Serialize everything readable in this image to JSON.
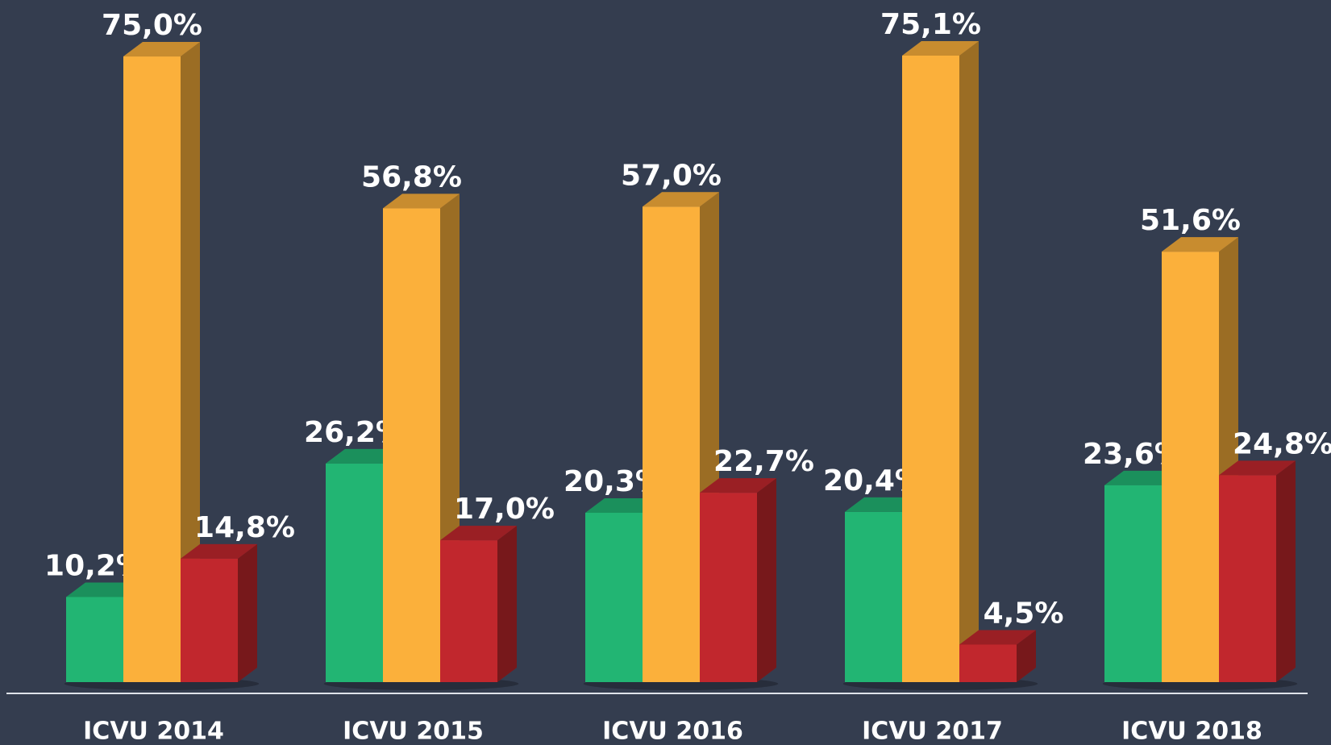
{
  "chart_data": {
    "type": "bar3d",
    "categories": [
      "ICVU 2014",
      "ICVU 2015",
      "ICVU 2016",
      "ICVU 2017",
      "ICVU 2018"
    ],
    "series": [
      {
        "color": "#22b573",
        "values": [
          10.2,
          26.2,
          20.3,
          20.4,
          23.6
        ],
        "value_labels": [
          "10,2%",
          "26,2%",
          "20,3%",
          "20,4%",
          "23,6%"
        ]
      },
      {
        "color": "#fbb03b",
        "values": [
          75.0,
          56.8,
          57.0,
          75.1,
          51.6
        ],
        "value_labels": [
          "75,0%",
          "56,8%",
          "57,0%",
          "75,1%",
          "51,6%"
        ]
      },
      {
        "color": "#c1272d",
        "values": [
          14.8,
          17.0,
          22.7,
          4.5,
          24.8
        ],
        "value_labels": [
          "14,8%",
          "17,0%",
          "22,7%",
          "4,5%",
          "24,8%"
        ]
      }
    ]
  }
}
